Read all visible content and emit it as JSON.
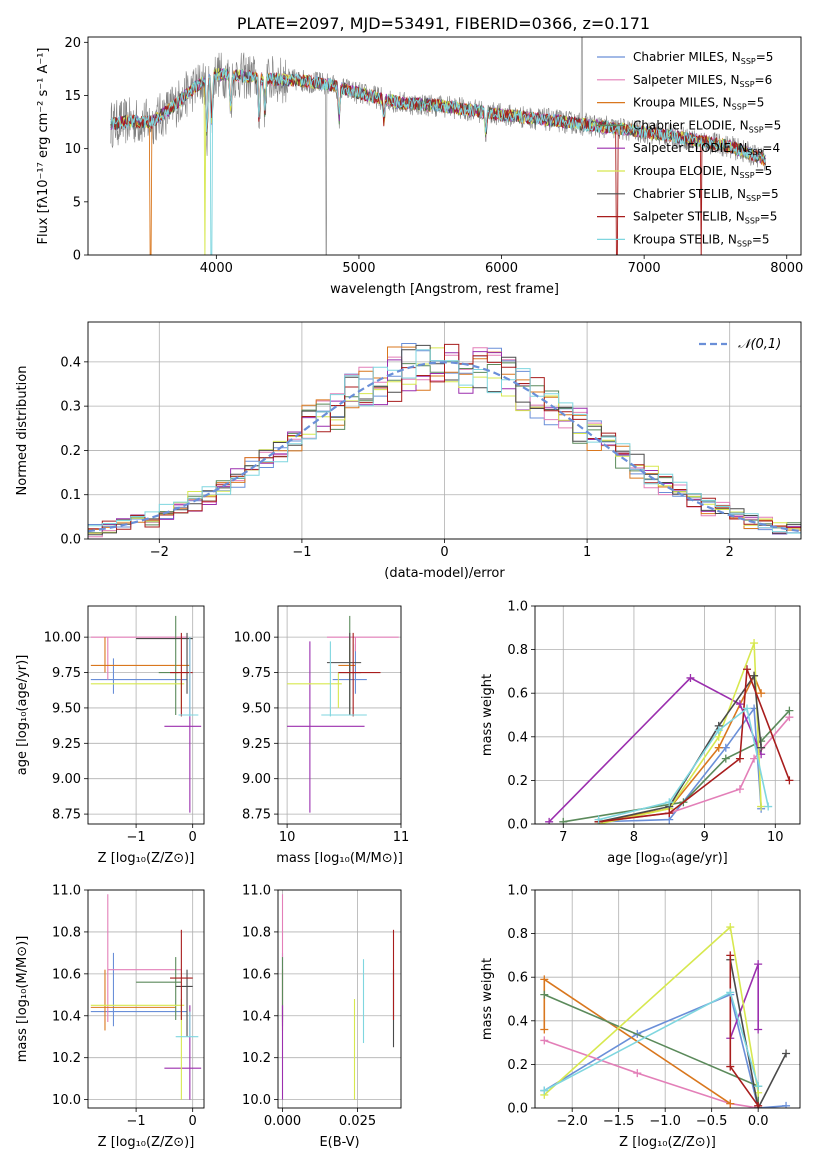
{
  "figure_title": "PLATE=2097, MJD=53491, FIBERID=0366, z=0.171",
  "series_styles": [
    {
      "name": "Chabrier MILES",
      "nssp": "5",
      "color": "#6a8fd8"
    },
    {
      "name": "Salpeter MILES",
      "nssp": "6",
      "color": "#e37fb8"
    },
    {
      "name": "Kroupa MILES",
      "nssp": "5",
      "color": "#d9771e"
    },
    {
      "name": "Chabrier ELODIE",
      "nssp": "5",
      "color": "#5b8a5b"
    },
    {
      "name": "Salpeter ELODIE",
      "nssp": "4",
      "color": "#9b2fae"
    },
    {
      "name": "Kroupa ELODIE",
      "nssp": "5",
      "color": "#d7e84f"
    },
    {
      "name": "Chabrier STELIB",
      "nssp": "5",
      "color": "#4a4a4a"
    },
    {
      "name": "Salpeter STELIB",
      "nssp": "5",
      "color": "#a81d1d"
    },
    {
      "name": "Kroupa STELIB",
      "nssp": "5",
      "color": "#7fd6df"
    }
  ],
  "chart_data": [
    {
      "id": "spectrum",
      "type": "line",
      "xlabel": "wavelength [Angstrom, rest frame]",
      "ylabel": "Flux [fλ10⁻¹⁷ erg cm⁻² s⁻¹ A⁻¹]",
      "xlim": [
        3100,
        8100
      ],
      "ylim": [
        0,
        20.5
      ],
      "xticks": [
        4000,
        5000,
        6000,
        7000,
        8000
      ],
      "yticks": [
        0,
        5,
        10,
        15,
        20
      ],
      "grid": false,
      "legend": "upper right",
      "data_color": "#808080",
      "continuum": {
        "x": [
          3260,
          3400,
          3550,
          3700,
          3850,
          4000,
          4200,
          4400,
          4600,
          4800,
          5000,
          5300,
          5600,
          6000,
          6400,
          6800,
          7200,
          7600,
          7850
        ],
        "y": [
          12.3,
          12.6,
          12.5,
          14.0,
          15.8,
          17.0,
          16.8,
          16.5,
          16.4,
          16.0,
          15.2,
          14.3,
          14.0,
          13.2,
          12.6,
          11.9,
          11.2,
          10.2,
          9.0
        ]
      },
      "drops": [
        {
          "series": 2,
          "x": 3540
        },
        {
          "series": 5,
          "x": 3920
        },
        {
          "series": 8,
          "x": 3965
        },
        {
          "series": 7,
          "x": 6810
        },
        {
          "series": 7,
          "x": 7400
        }
      ]
    },
    {
      "id": "residual-hist",
      "type": "histogram",
      "xlabel": "(data-model)/error",
      "ylabel": "Normed distribution",
      "xlim": [
        -2.5,
        2.5
      ],
      "ylim": [
        0,
        0.49
      ],
      "xticks": [
        -2,
        -1,
        0,
        1,
        2
      ],
      "yticks": [
        0.0,
        0.1,
        0.2,
        0.3,
        0.4
      ],
      "grid": true,
      "legend": "upper right",
      "bins": 50,
      "reference": {
        "name": "𝒩(0,1)",
        "mu": 0,
        "sigma": 1,
        "color": "#6a8fd8"
      }
    },
    {
      "id": "age-vs-Z",
      "type": "errorbar",
      "xlabel": "Z [log₁₀(Z/Z⊙)]",
      "ylabel": "age  [log₁₀(age/yr)]",
      "xlim": [
        -1.85,
        0.2
      ],
      "ylim": [
        8.68,
        10.22
      ],
      "xticks": [
        -1,
        0
      ],
      "yticks": [
        8.75,
        9.0,
        9.25,
        9.5,
        9.75,
        10.0
      ],
      "grid": true,
      "points": [
        {
          "s": 0,
          "x": -1.4,
          "xe": [
            -1.8,
            -0.1
          ],
          "y": 9.7,
          "ye": [
            9.6,
            9.85
          ]
        },
        {
          "s": 1,
          "x": -1.5,
          "xe": [
            -1.8,
            -0.1
          ],
          "y": 10.0,
          "ye": [
            9.7,
            10.0
          ]
        },
        {
          "s": 2,
          "x": -1.55,
          "xe": [
            -1.8,
            -0.05
          ],
          "y": 9.8,
          "ye": [
            9.75,
            10.0
          ]
        },
        {
          "s": 3,
          "x": -0.3,
          "xe": [
            -0.6,
            -0.25
          ],
          "y": 9.75,
          "ye": [
            9.45,
            10.15
          ]
        },
        {
          "s": 4,
          "x": -0.05,
          "xe": [
            -0.5,
            0.15
          ],
          "y": 9.37,
          "ye": [
            8.76,
            10.0
          ]
        },
        {
          "s": 5,
          "x": -0.2,
          "xe": [
            -1.8,
            -0.15
          ],
          "y": 9.67,
          "ye": [
            9.5,
            9.75
          ]
        },
        {
          "s": 6,
          "x": -0.1,
          "xe": [
            -1.0,
            0.0
          ],
          "y": 9.99,
          "ye": [
            9.6,
            10.03
          ]
        },
        {
          "s": 7,
          "x": -0.2,
          "xe": [
            -0.4,
            0.0
          ],
          "y": 9.75,
          "ye": [
            9.44,
            10.03
          ]
        },
        {
          "s": 8,
          "x": -0.05,
          "xe": [
            -0.25,
            0.1
          ],
          "y": 9.45,
          "ye": [
            9.44,
            10.0
          ]
        }
      ]
    },
    {
      "id": "age-vs-mass",
      "type": "errorbar",
      "xlabel": "mass [log₁₀(M/M⊙)]",
      "xlim": [
        9.92,
        11.0
      ],
      "ylim": [
        8.68,
        10.22
      ],
      "xticks": [
        10,
        11
      ],
      "yticks": [
        8.75,
        9.0,
        9.25,
        9.5,
        9.75,
        10.0
      ],
      "grid": true,
      "points": [
        {
          "s": 0,
          "x": 10.6,
          "xe": [
            10.4,
            10.7
          ],
          "y": 9.7,
          "ye": [
            9.6,
            9.95
          ]
        },
        {
          "s": 1,
          "x": 10.6,
          "xe": [
            10.35,
            10.98
          ],
          "y": 10.0,
          "ye": [
            9.9,
            10.0
          ]
        },
        {
          "s": 2,
          "x": 10.55,
          "xe": [
            10.45,
            10.6
          ],
          "y": 9.8,
          "ye": [
            9.7,
            10.0
          ]
        },
        {
          "s": 3,
          "x": 10.55,
          "xe": [
            10.45,
            10.65
          ],
          "y": 9.75,
          "ye": [
            9.45,
            10.15
          ]
        },
        {
          "s": 4,
          "x": 10.2,
          "xe": [
            10.0,
            10.68
          ],
          "y": 9.37,
          "ye": [
            8.76,
            9.97
          ]
        },
        {
          "s": 5,
          "x": 10.45,
          "xe": [
            10.0,
            10.48
          ],
          "y": 9.67,
          "ye": [
            9.5,
            9.75
          ]
        },
        {
          "s": 6,
          "x": 10.55,
          "xe": [
            10.35,
            10.65
          ],
          "y": 9.82,
          "ye": [
            9.45,
            10.03
          ]
        },
        {
          "s": 7,
          "x": 10.58,
          "xe": [
            10.45,
            10.82
          ],
          "y": 9.75,
          "ye": [
            9.44,
            10.03
          ]
        },
        {
          "s": 8,
          "x": 10.38,
          "xe": [
            10.3,
            10.7
          ],
          "y": 9.45,
          "ye": [
            9.44,
            9.97
          ]
        }
      ]
    },
    {
      "id": "mass-weight-vs-age",
      "type": "line",
      "xlabel": "age  [log₁₀(age/yr)]",
      "ylabel": "mass weight",
      "xlim": [
        6.6,
        10.35
      ],
      "ylim": [
        0,
        1.0
      ],
      "xticks": [
        7,
        8,
        9,
        10
      ],
      "yticks": [
        0.0,
        0.2,
        0.4,
        0.6,
        0.8,
        1.0
      ],
      "grid": true,
      "series": [
        {
          "s": 0,
          "x": [
            7.5,
            8.5,
            9.3,
            9.7,
            9.8
          ],
          "y": [
            0.01,
            0.02,
            0.35,
            0.53,
            0.07
          ]
        },
        {
          "s": 1,
          "x": [
            7.5,
            8.5,
            9.5,
            9.7,
            10.2
          ],
          "y": [
            0.01,
            0.05,
            0.16,
            0.3,
            0.49
          ]
        },
        {
          "s": 2,
          "x": [
            7.5,
            8.5,
            9.2,
            9.7,
            9.8
          ],
          "y": [
            0.01,
            0.07,
            0.35,
            0.68,
            0.6
          ]
        },
        {
          "s": 3,
          "x": [
            7.0,
            8.7,
            9.3,
            9.8,
            10.2
          ],
          "y": [
            0.01,
            0.1,
            0.3,
            0.38,
            0.52
          ]
        },
        {
          "s": 4,
          "x": [
            6.8,
            8.8,
            9.5,
            9.8
          ],
          "y": [
            0.01,
            0.67,
            0.55,
            0.32
          ]
        },
        {
          "s": 5,
          "x": [
            7.5,
            8.5,
            9.2,
            9.7,
            9.8
          ],
          "y": [
            0.0,
            0.07,
            0.4,
            0.83,
            0.08
          ]
        },
        {
          "s": 6,
          "x": [
            7.5,
            8.5,
            9.2,
            9.7,
            9.8
          ],
          "y": [
            0.01,
            0.08,
            0.45,
            0.68,
            0.35
          ]
        },
        {
          "s": 7,
          "x": [
            7.5,
            8.5,
            9.5,
            9.6,
            10.2
          ],
          "y": [
            0.01,
            0.05,
            0.3,
            0.71,
            0.2
          ]
        },
        {
          "s": 8,
          "x": [
            7.5,
            8.5,
            9.2,
            9.6,
            9.9
          ],
          "y": [
            0.02,
            0.1,
            0.43,
            0.53,
            0.08
          ]
        }
      ]
    },
    {
      "id": "mass-vs-Z",
      "type": "errorbar",
      "xlabel": "Z [log₁₀(Z/Z⊙)]",
      "ylabel": "mass [log₁₀(M/M⊙)]",
      "xlim": [
        -1.85,
        0.2
      ],
      "ylim": [
        9.96,
        11.0
      ],
      "xticks": [
        -1,
        0
      ],
      "yticks": [
        10.0,
        10.2,
        10.4,
        10.6,
        10.8,
        11.0
      ],
      "grid": true,
      "points": [
        {
          "s": 0,
          "x": -1.4,
          "xe": [
            -1.8,
            -0.1
          ],
          "y": 10.42,
          "ye": [
            10.35,
            10.7
          ]
        },
        {
          "s": 1,
          "x": -1.5,
          "xe": [
            -1.5,
            -0.2
          ],
          "y": 10.62,
          "ye": [
            10.37,
            10.98
          ]
        },
        {
          "s": 2,
          "x": -1.55,
          "xe": [
            -1.8,
            -0.3
          ],
          "y": 10.44,
          "ye": [
            10.33,
            10.62
          ]
        },
        {
          "s": 3,
          "x": -0.3,
          "xe": [
            -1.0,
            -0.2
          ],
          "y": 10.56,
          "ye": [
            10.38,
            10.68
          ]
        },
        {
          "s": 4,
          "x": -0.05,
          "xe": [
            -0.5,
            0.15
          ],
          "y": 10.15,
          "ye": [
            10.0,
            10.45
          ]
        },
        {
          "s": 5,
          "x": -0.2,
          "xe": [
            -1.8,
            -0.15
          ],
          "y": 10.45,
          "ye": [
            10.0,
            10.48
          ]
        },
        {
          "s": 6,
          "x": -0.1,
          "xe": [
            -0.3,
            0.0
          ],
          "y": 10.54,
          "ye": [
            10.3,
            10.62
          ]
        },
        {
          "s": 7,
          "x": -0.2,
          "xe": [
            -0.4,
            0.0
          ],
          "y": 10.58,
          "ye": [
            10.38,
            10.81
          ]
        },
        {
          "s": 8,
          "x": -0.05,
          "xe": [
            -0.3,
            0.1
          ],
          "y": 10.3,
          "ye": [
            10.3,
            10.42
          ]
        }
      ]
    },
    {
      "id": "mass-vs-EBV",
      "type": "errorbar",
      "xlabel": "E(B-V)",
      "xlim": [
        -0.0015,
        0.0395
      ],
      "ylim": [
        9.96,
        11.0
      ],
      "xticks": [
        0.0,
        0.025
      ],
      "xticklabels": [
        "0.000",
        "0.025"
      ],
      "yticks": [
        10.0,
        10.2,
        10.4,
        10.6,
        10.8,
        11.0
      ],
      "grid": true,
      "points": [
        {
          "s": 0,
          "x": 0.0,
          "y": 10.42,
          "ye": [
            10.35,
            10.7
          ]
        },
        {
          "s": 1,
          "x": 0.0,
          "y": 10.62,
          "ye": [
            10.37,
            10.98
          ]
        },
        {
          "s": 2,
          "x": 0.0,
          "y": 10.44,
          "ye": [
            10.33,
            10.62
          ]
        },
        {
          "s": 3,
          "x": 0.0,
          "y": 10.56,
          "ye": [
            10.38,
            10.68
          ]
        },
        {
          "s": 4,
          "x": 0.0,
          "y": 10.15,
          "ye": [
            10.0,
            10.45
          ]
        },
        {
          "s": 5,
          "x": 0.024,
          "y": 10.3,
          "ye": [
            10.0,
            10.48
          ]
        },
        {
          "s": 6,
          "x": 0.037,
          "y": 10.54,
          "ye": [
            10.25,
            10.62
          ]
        },
        {
          "s": 7,
          "x": 0.037,
          "y": 10.58,
          "ye": [
            10.38,
            10.81
          ]
        },
        {
          "s": 8,
          "x": 0.027,
          "y": 10.4,
          "ye": [
            10.27,
            10.67
          ]
        }
      ]
    },
    {
      "id": "mass-weight-vs-Z",
      "type": "line",
      "xlabel": "Z [log₁₀(Z/Z⊙)]",
      "ylabel": "mass weight",
      "xlim": [
        -2.4,
        0.45
      ],
      "ylim": [
        0,
        1.0
      ],
      "xticks": [
        -2.0,
        -1.5,
        -1.0,
        -0.5,
        0.0
      ],
      "xticklabels": [
        "−2.0",
        "−1.5",
        "−1.0",
        "−0.5",
        "0.0"
      ],
      "yticks": [
        0.0,
        0.2,
        0.4,
        0.6,
        0.8,
        1.0
      ],
      "grid": true,
      "series": [
        {
          "s": 0,
          "x": [
            -2.3,
            -1.3,
            -0.3,
            0.0,
            0.3
          ],
          "y": [
            0.08,
            0.34,
            0.52,
            0.0,
            0.01
          ]
        },
        {
          "s": 1,
          "x": [
            -2.3,
            -1.3,
            -0.3,
            0.0
          ],
          "y": [
            0.31,
            0.16,
            0.02,
            0.0
          ]
        },
        {
          "s": 2,
          "x": [
            -2.3,
            -2.3,
            -0.3
          ],
          "y": [
            0.36,
            0.59,
            0.02
          ]
        },
        {
          "s": 3,
          "x": [
            -2.3,
            0.0,
            0.0
          ],
          "y": [
            0.52,
            0.1,
            0.0
          ]
        },
        {
          "s": 4,
          "x": [
            -0.3,
            0.0,
            0.0
          ],
          "y": [
            0.32,
            0.66,
            0.36
          ]
        },
        {
          "s": 5,
          "x": [
            -2.3,
            -0.3,
            0.0
          ],
          "y": [
            0.06,
            0.83,
            0.07
          ]
        },
        {
          "s": 6,
          "x": [
            -0.3,
            0.0,
            0.3
          ],
          "y": [
            0.68,
            0.0,
            0.25
          ]
        },
        {
          "s": 7,
          "x": [
            -0.3,
            -0.3,
            0.0
          ],
          "y": [
            0.7,
            0.19,
            0.01
          ]
        },
        {
          "s": 8,
          "x": [
            -2.3,
            -0.3,
            0.0
          ],
          "y": [
            0.08,
            0.53,
            0.1
          ]
        }
      ]
    }
  ]
}
